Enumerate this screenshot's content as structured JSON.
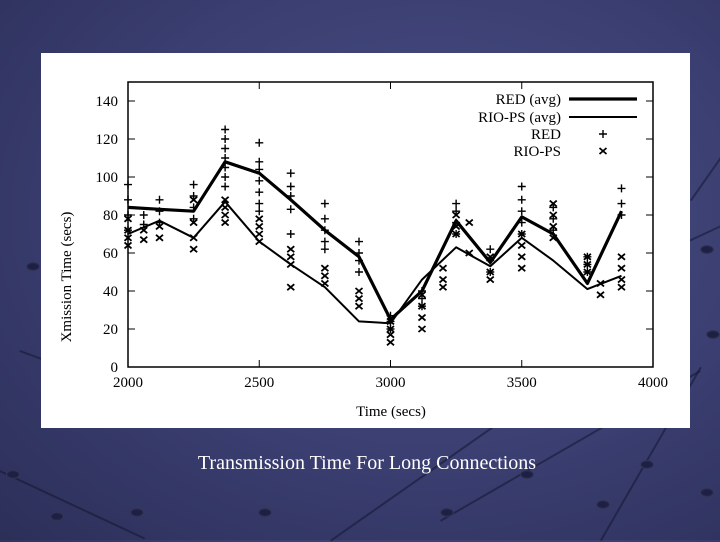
{
  "caption": "Transmission Time For Long Connections",
  "chart_data": {
    "type": "line",
    "xlabel": "Time (secs)",
    "ylabel": "Xmission Time (secs)",
    "xlim": [
      2000,
      4000
    ],
    "ylim": [
      0,
      150
    ],
    "xticks": [
      2000,
      2500,
      3000,
      3500,
      4000
    ],
    "yticks": [
      0,
      20,
      40,
      60,
      80,
      100,
      120,
      140
    ],
    "grid": false,
    "legend_position": "top-right",
    "series": [
      {
        "name": "RED (avg)",
        "style": "thick-line",
        "x": [
          2000,
          2120,
          2250,
          2370,
          2500,
          2620,
          2750,
          2880,
          3000,
          3120,
          3250,
          3380,
          3500,
          3620,
          3750,
          3880
        ],
        "y": [
          84,
          83,
          82,
          108,
          102,
          88,
          72,
          58,
          25,
          40,
          77,
          55,
          79,
          70,
          44,
          82
        ]
      },
      {
        "name": "RIO-PS (avg)",
        "style": "thin-line",
        "x": [
          2000,
          2120,
          2250,
          2370,
          2500,
          2620,
          2750,
          2880,
          3000,
          3120,
          3250,
          3380,
          3500,
          3620,
          3750,
          3880
        ],
        "y": [
          70,
          77,
          68,
          87,
          66,
          54,
          42,
          24,
          23,
          46,
          63,
          53,
          68,
          56,
          41,
          48
        ]
      },
      {
        "name": "RED",
        "style": "plus",
        "x": [
          2000,
          2000,
          2000,
          2000,
          2060,
          2060,
          2120,
          2120,
          2120,
          2250,
          2250,
          2250,
          2250,
          2370,
          2370,
          2370,
          2370,
          2370,
          2370,
          2370,
          2500,
          2500,
          2500,
          2500,
          2500,
          2500,
          2500,
          2620,
          2620,
          2620,
          2620,
          2620,
          2750,
          2750,
          2750,
          2750,
          2750,
          2880,
          2880,
          2880,
          2880,
          3000,
          3000,
          3000,
          3120,
          3120,
          3120,
          3250,
          3250,
          3250,
          3250,
          3380,
          3380,
          3380,
          3500,
          3500,
          3500,
          3500,
          3500,
          3620,
          3620,
          3620,
          3750,
          3750,
          3750,
          3880,
          3880,
          3880
        ],
        "y": [
          96,
          88,
          80,
          72,
          80,
          75,
          88,
          82,
          76,
          96,
          90,
          84,
          78,
          125,
          120,
          115,
          110,
          105,
          100,
          95,
          118,
          108,
          104,
          98,
          92,
          86,
          82,
          102,
          95,
          90,
          83,
          70,
          86,
          78,
          72,
          66,
          62,
          66,
          60,
          56,
          50,
          27,
          24,
          20,
          40,
          36,
          32,
          86,
          82,
          76,
          70,
          62,
          56,
          50,
          95,
          88,
          82,
          76,
          70,
          84,
          78,
          72,
          58,
          54,
          50,
          94,
          86,
          80
        ]
      },
      {
        "name": "RIO-PS",
        "style": "x",
        "x": [
          2000,
          2000,
          2000,
          2000,
          2060,
          2060,
          2120,
          2120,
          2250,
          2250,
          2250,
          2250,
          2370,
          2370,
          2370,
          2370,
          2500,
          2500,
          2500,
          2500,
          2620,
          2620,
          2620,
          2620,
          2750,
          2750,
          2750,
          2880,
          2880,
          2880,
          3000,
          3000,
          3000,
          3000,
          3120,
          3120,
          3120,
          3120,
          3200,
          3200,
          3200,
          3250,
          3250,
          3250,
          3300,
          3300,
          3380,
          3380,
          3380,
          3500,
          3500,
          3500,
          3500,
          3620,
          3620,
          3620,
          3620,
          3750,
          3750,
          3750,
          3800,
          3800,
          3880,
          3880,
          3880,
          3880
        ],
        "y": [
          78,
          72,
          68,
          64,
          72,
          67,
          74,
          68,
          88,
          76,
          68,
          62,
          88,
          84,
          80,
          76,
          78,
          74,
          70,
          66,
          62,
          58,
          54,
          42,
          52,
          48,
          44,
          40,
          36,
          32,
          24,
          20,
          17,
          13,
          32,
          26,
          20,
          38,
          52,
          46,
          42,
          80,
          74,
          70,
          76,
          60,
          58,
          50,
          46,
          70,
          64,
          58,
          52,
          86,
          80,
          74,
          68,
          58,
          54,
          50,
          44,
          38,
          58,
          52,
          46,
          42
        ]
      }
    ]
  }
}
